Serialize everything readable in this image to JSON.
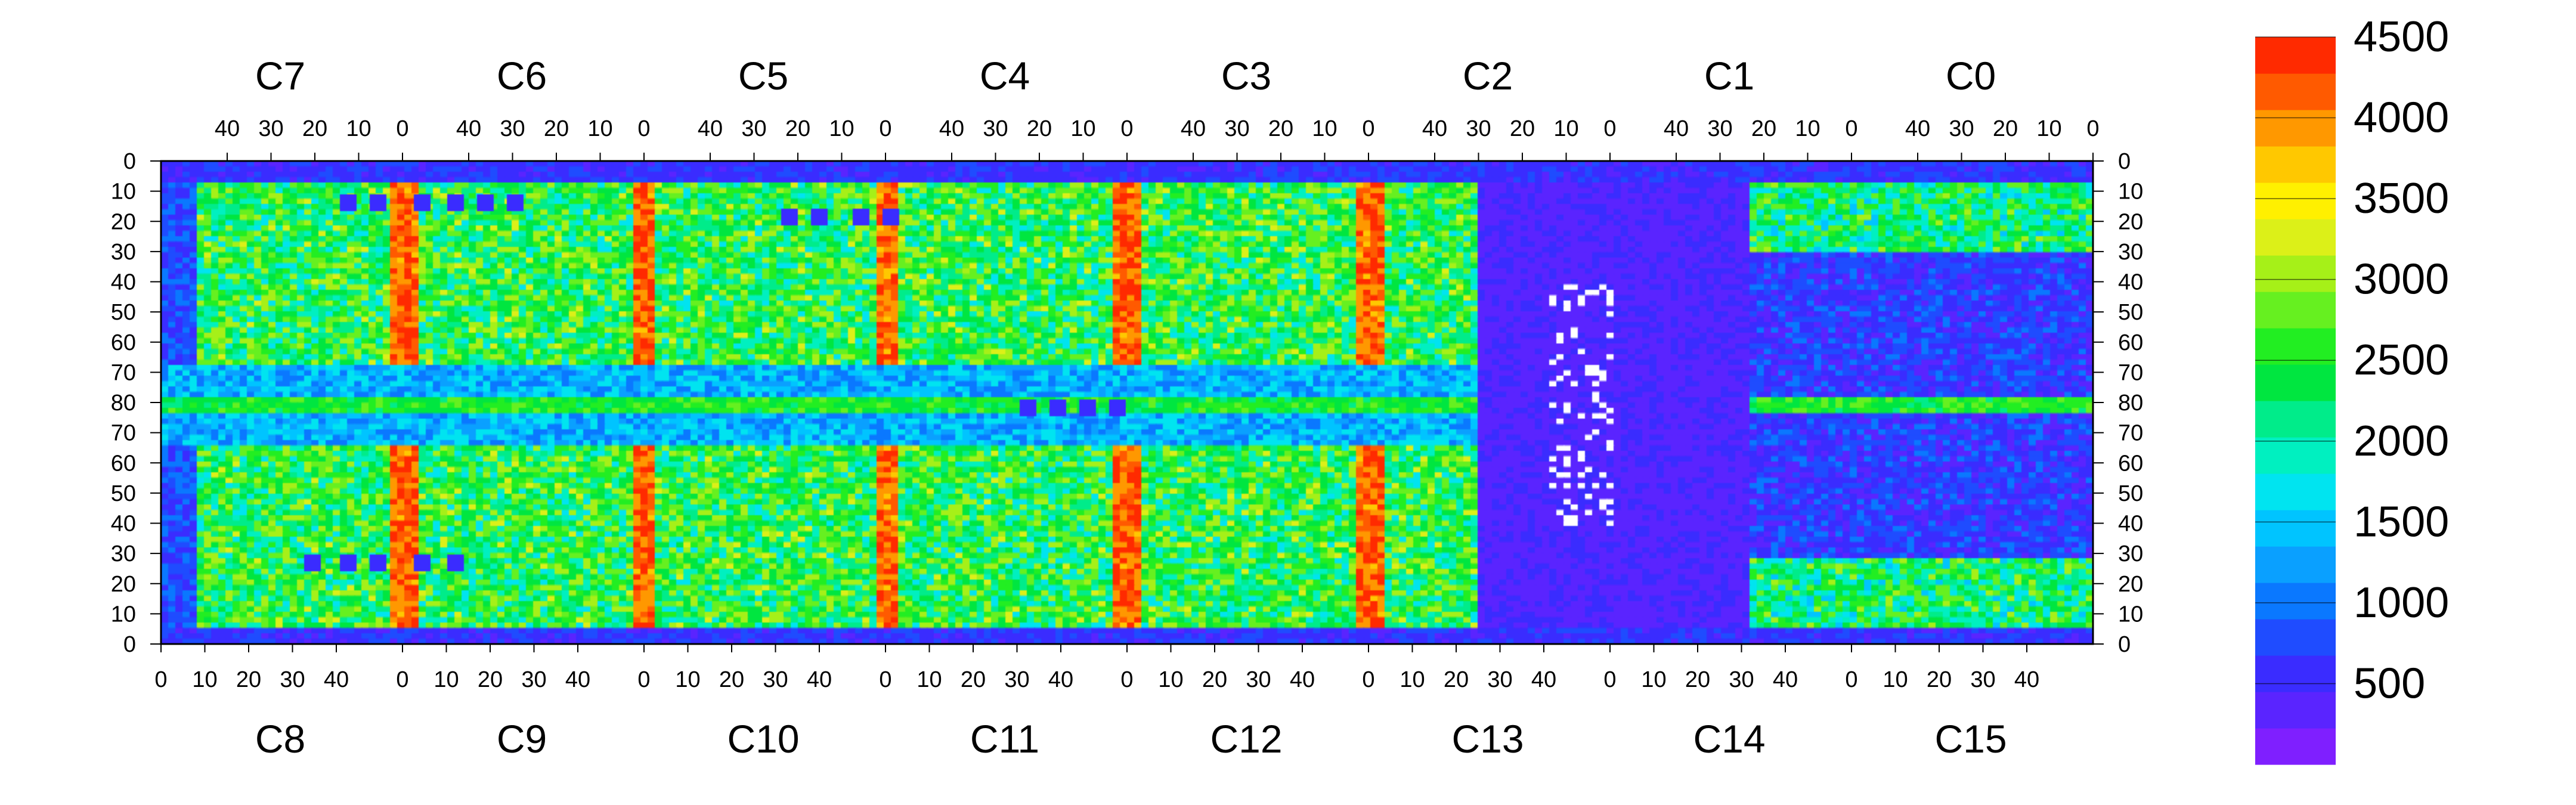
{
  "chart_data": {
    "type": "heatmap",
    "title": "",
    "top_chip_labels": [
      "C7",
      "C6",
      "C5",
      "C4",
      "C3",
      "C2",
      "C1",
      "C0"
    ],
    "bottom_chip_labels": [
      "C8",
      "C9",
      "C10",
      "C11",
      "C12",
      "C13",
      "C14",
      "C15"
    ],
    "x_top_ticks": [
      "40",
      "30",
      "20",
      "10",
      "0"
    ],
    "x_bottom_ticks": [
      "0",
      "10",
      "20",
      "30",
      "40"
    ],
    "y_ticks_left": [
      "0",
      "10",
      "20",
      "30",
      "40",
      "50",
      "60",
      "70",
      "80",
      "70",
      "60",
      "50",
      "40",
      "30",
      "20",
      "10",
      "0"
    ],
    "y_ticks_right": [
      "0",
      "10",
      "20",
      "30",
      "40",
      "50",
      "60",
      "70",
      "80",
      "70",
      "60",
      "50",
      "40",
      "30",
      "20",
      "10",
      "0"
    ],
    "colorbar": {
      "min": 0,
      "max": 4500,
      "tick_labels": [
        "4500",
        "4000",
        "3500",
        "3000",
        "2500",
        "2000",
        "1500",
        "1000",
        "500"
      ],
      "colors": [
        "#7f1fff",
        "#5a24ff",
        "#3a2cff",
        "#1f4cff",
        "#0a78ff",
        "#0aa0ff",
        "#00c4ff",
        "#00e4f0",
        "#00f0c0",
        "#00ec8a",
        "#00e640",
        "#22ee22",
        "#66f020",
        "#a6f018",
        "#dcf018",
        "#fff000",
        "#ffc800",
        "#ff9800",
        "#ff5a00",
        "#ff2a00"
      ]
    },
    "grid": false
  }
}
